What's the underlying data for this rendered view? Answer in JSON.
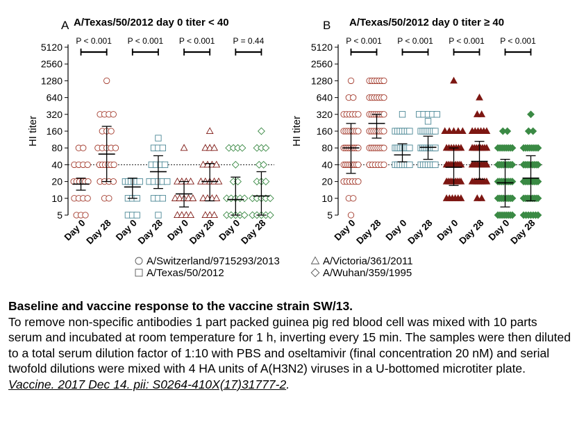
{
  "chart_data": [
    {
      "type": "scatter",
      "panel_letter": "A",
      "title": "A/Texas/50/2012 day 0 titer < 40",
      "ylabel": "HI titer",
      "y_ticks": [
        "5",
        "10",
        "20",
        "40",
        "80",
        "160",
        "320",
        "640",
        "1280",
        "2560",
        "5120"
      ],
      "y_scale": "log2",
      "ylim": [
        5,
        5120
      ],
      "threshold": 40,
      "categories": [
        "Day 0",
        "Day 28",
        "Day 0",
        "Day 28",
        "Day 0",
        "Day 28",
        "Day 0",
        "Day 28"
      ],
      "comparisons": [
        {
          "label": "P < 0.001",
          "from": 0,
          "to": 1
        },
        {
          "label": "P < 0.001",
          "from": 2,
          "to": 3
        },
        {
          "label": "P < 0.001",
          "from": 4,
          "to": 5
        },
        {
          "label": "P = 0.44",
          "from": 6,
          "to": 7
        }
      ],
      "groups": [
        {
          "strain": "A/Switzerland/9715293/2013",
          "day": "Day 0",
          "mean": 18,
          "sd_low": 14,
          "sd_high": 23,
          "points": [
            {
              "titer": 5,
              "n": 3
            },
            {
              "titer": 10,
              "n": 4
            },
            {
              "titer": 20,
              "n": 6
            },
            {
              "titer": 40,
              "n": 4
            },
            {
              "titer": 80,
              "n": 2
            }
          ]
        },
        {
          "strain": "A/Switzerland/9715293/2013",
          "day": "Day 28",
          "mean": 62,
          "sd_low": 20,
          "sd_high": 195,
          "points": [
            {
              "titer": 10,
              "n": 2
            },
            {
              "titer": 20,
              "n": 4
            },
            {
              "titer": 40,
              "n": 6
            },
            {
              "titer": 80,
              "n": 5
            },
            {
              "titer": 160,
              "n": 3
            },
            {
              "titer": 320,
              "n": 4
            },
            {
              "titer": 1280,
              "n": 1
            }
          ]
        },
        {
          "strain": "A/Texas/50/2012",
          "day": "Day 0",
          "mean": 16,
          "sd_low": 10,
          "sd_high": 23,
          "points": [
            {
              "titer": 5,
              "n": 3
            },
            {
              "titer": 10,
              "n": 3
            },
            {
              "titer": 20,
              "n": 6
            }
          ]
        },
        {
          "strain": "A/Texas/50/2012",
          "day": "Day 28",
          "mean": 30,
          "sd_low": 15,
          "sd_high": 58,
          "points": [
            {
              "titer": 5,
              "n": 1
            },
            {
              "titer": 10,
              "n": 3
            },
            {
              "titer": 20,
              "n": 5
            },
            {
              "titer": 40,
              "n": 4
            },
            {
              "titer": 80,
              "n": 3
            },
            {
              "titer": 120,
              "n": 1
            }
          ]
        },
        {
          "strain": "A/Victoria/361/2011",
          "day": "Day 0",
          "mean": 12,
          "sd_low": 7,
          "sd_high": 20,
          "points": [
            {
              "titer": 5,
              "n": 4
            },
            {
              "titer": 10,
              "n": 5
            },
            {
              "titer": 20,
              "n": 4
            },
            {
              "titer": 80,
              "n": 1
            }
          ]
        },
        {
          "strain": "A/Victoria/361/2011",
          "day": "Day 28",
          "mean": 20,
          "sd_low": 9,
          "sd_high": 42,
          "points": [
            {
              "titer": 5,
              "n": 3
            },
            {
              "titer": 10,
              "n": 4
            },
            {
              "titer": 20,
              "n": 5
            },
            {
              "titer": 40,
              "n": 4
            },
            {
              "titer": 80,
              "n": 3
            },
            {
              "titer": 160,
              "n": 1
            }
          ]
        },
        {
          "strain": "A/Wuhan/359/1995",
          "day": "Day 0",
          "mean": 9.5,
          "sd_low": 5,
          "sd_high": 24,
          "points": [
            {
              "titer": 5,
              "n": 5
            },
            {
              "titer": 10,
              "n": 5
            },
            {
              "titer": 20,
              "n": 2
            },
            {
              "titer": 40,
              "n": 1
            },
            {
              "titer": 80,
              "n": 4
            }
          ]
        },
        {
          "strain": "A/Wuhan/359/1995",
          "day": "Day 28",
          "mean": 11,
          "sd_low": 5,
          "sd_high": 30,
          "points": [
            {
              "titer": 5,
              "n": 5
            },
            {
              "titer": 10,
              "n": 5
            },
            {
              "titer": 20,
              "n": 3
            },
            {
              "titer": 40,
              "n": 2
            },
            {
              "titer": 80,
              "n": 3
            },
            {
              "titer": 160,
              "n": 1
            }
          ]
        }
      ]
    },
    {
      "type": "scatter",
      "panel_letter": "B",
      "title": "A/Texas/50/2012 day 0 titer ≥ 40",
      "ylabel": "HI titer",
      "y_ticks": [
        "5",
        "10",
        "20",
        "40",
        "80",
        "160",
        "320",
        "640",
        "1280",
        "2560",
        "5120"
      ],
      "y_scale": "log2",
      "ylim": [
        5,
        5120
      ],
      "threshold": 40,
      "categories": [
        "Day 0",
        "Day 28",
        "Day 0",
        "Day 28",
        "Day 0",
        "Day 28",
        "Day 0",
        "Day 28"
      ],
      "comparisons": [
        {
          "label": "P < 0.001",
          "from": 0,
          "to": 1
        },
        {
          "label": "P < 0.001",
          "from": 2,
          "to": 3
        },
        {
          "label": "P < 0.001",
          "from": 4,
          "to": 5
        },
        {
          "label": "P < 0.001",
          "from": 6,
          "to": 7
        }
      ],
      "groups": [
        {
          "strain": "A/Switzerland/9715293/2013",
          "day": "Day 0",
          "mean": 80,
          "sd_low": 28,
          "sd_high": 220,
          "points": [
            {
              "titer": 5,
              "n": 1
            },
            {
              "titer": 10,
              "n": 2
            },
            {
              "titer": 20,
              "n": 6
            },
            {
              "titer": 40,
              "n": 9
            },
            {
              "titer": 80,
              "n": 9
            },
            {
              "titer": 160,
              "n": 8
            },
            {
              "titer": 320,
              "n": 6
            },
            {
              "titer": 640,
              "n": 2
            },
            {
              "titer": 1280,
              "n": 1
            }
          ]
        },
        {
          "strain": "A/Switzerland/9715293/2013",
          "day": "Day 28",
          "mean": 220,
          "sd_low": 120,
          "sd_high": 320,
          "points": [
            {
              "titer": 40,
              "n": 6
            },
            {
              "titer": 80,
              "n": 8
            },
            {
              "titer": 160,
              "n": 8
            },
            {
              "titer": 320,
              "n": 8
            },
            {
              "titer": 640,
              "n": 7
            },
            {
              "titer": 1280,
              "n": 7
            }
          ]
        },
        {
          "strain": "A/Texas/50/2012",
          "day": "Day 0",
          "mean": 60,
          "sd_low": 45,
          "sd_high": 95,
          "points": [
            {
              "titer": 40,
              "n": 7
            },
            {
              "titer": 80,
              "n": 9
            },
            {
              "titer": 160,
              "n": 7
            },
            {
              "titer": 320,
              "n": 1
            }
          ]
        },
        {
          "strain": "A/Texas/50/2012",
          "day": "Day 28",
          "mean": 82,
          "sd_low": 50,
          "sd_high": 130,
          "points": [
            {
              "titer": 40,
              "n": 7
            },
            {
              "titer": 80,
              "n": 9
            },
            {
              "titer": 160,
              "n": 8
            },
            {
              "titer": 240,
              "n": 1
            },
            {
              "titer": 320,
              "n": 5
            }
          ]
        },
        {
          "strain": "A/Victoria/361/2011",
          "day": "Day 0",
          "mean": 36,
          "sd_low": 17,
          "sd_high": 80,
          "points": [
            {
              "titer": 10,
              "n": 6
            },
            {
              "titer": 20,
              "n": 9
            },
            {
              "titer": 40,
              "n": 9
            },
            {
              "titer": 80,
              "n": 7
            },
            {
              "titer": 160,
              "n": 5
            },
            {
              "titer": 1280,
              "n": 1
            }
          ]
        },
        {
          "strain": "A/Victoria/361/2011",
          "day": "Day 28",
          "mean": 46,
          "sd_low": 22,
          "sd_high": 105,
          "points": [
            {
              "titer": 10,
              "n": 2
            },
            {
              "titer": 20,
              "n": 8
            },
            {
              "titer": 40,
              "n": 9
            },
            {
              "titer": 80,
              "n": 8
            },
            {
              "titer": 160,
              "n": 6
            },
            {
              "titer": 320,
              "n": 2
            },
            {
              "titer": 640,
              "n": 1
            }
          ]
        },
        {
          "strain": "A/Wuhan/359/1995",
          "day": "Day 0",
          "mean": 19,
          "sd_low": 7,
          "sd_high": 50,
          "points": [
            {
              "titer": 5,
              "n": 8
            },
            {
              "titer": 10,
              "n": 9
            },
            {
              "titer": 20,
              "n": 9
            },
            {
              "titer": 40,
              "n": 9
            },
            {
              "titer": 80,
              "n": 8
            },
            {
              "titer": 160,
              "n": 2
            }
          ]
        },
        {
          "strain": "A/Wuhan/359/1995",
          "day": "Day 28",
          "mean": 23,
          "sd_low": 9,
          "sd_high": 58,
          "points": [
            {
              "titer": 5,
              "n": 7
            },
            {
              "titer": 10,
              "n": 9
            },
            {
              "titer": 20,
              "n": 9
            },
            {
              "titer": 40,
              "n": 9
            },
            {
              "titer": 80,
              "n": 8
            },
            {
              "titer": 160,
              "n": 2
            },
            {
              "titer": 320,
              "n": 1
            }
          ]
        }
      ]
    }
  ],
  "legend": [
    {
      "symbol": "circle",
      "label": "A/Switzerland/9715293/2013"
    },
    {
      "symbol": "square",
      "label": "A/Texas/50/2012"
    },
    {
      "symbol": "triangle",
      "label": "A/Victoria/361/2011"
    },
    {
      "symbol": "diamond",
      "label": "A/Wuhan/359/1995"
    }
  ],
  "colors": {
    "A/Switzerland/9715293/2013": "#a33a2c",
    "A/Texas/50/2012": "#4a8795",
    "A/Victoria/361/2011": "#7d1712",
    "A/Wuhan/359/1995": "#3b8a45",
    "text": "#000000",
    "legend_symbol": "#555555"
  },
  "symbols": {
    "A/Switzerland/9715293/2013": "circle",
    "A/Texas/50/2012": "square",
    "A/Victoria/361/2011": "triangle",
    "A/Wuhan/359/1995": "diamond"
  },
  "caption": {
    "title": "Baseline and vaccine response to the vaccine strain SW/13.",
    "body": "To remove non-specific antibodies 1 part packed guinea pig red blood cell was mixed with 10 parts serum and incubated at room temperature for 1 h, inverting every 15 min. The samples were then diluted to a total serum dilution factor of 1:10 with PBS and oseltamivir (final concentration 20 nM) and serial twofold dilutions were mixed with 4 HA units of A(H3N2) viruses in a U-bottomed microtiter plate.",
    "citation": "Vaccine. 2017 Dec 14. pii: S0264-410X(17)31777-2",
    "citation_suffix": "."
  }
}
